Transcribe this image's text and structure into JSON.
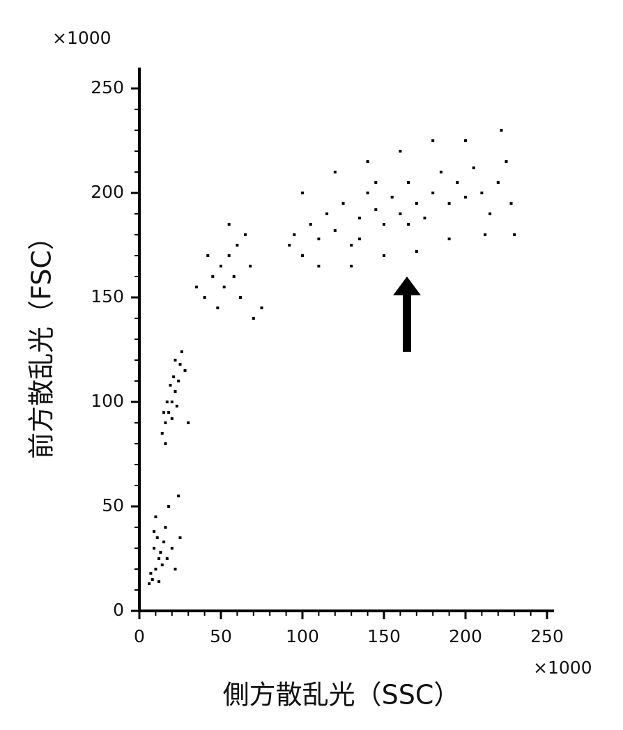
{
  "chart_data": {
    "type": "scatter",
    "x_label": "側方散乱光（SSC）",
    "y_label": "前方散乱光（FSC）",
    "x_unit": "×1000",
    "y_unit": "×1000",
    "xlim": [
      0,
      250
    ],
    "ylim": [
      0,
      250
    ],
    "xticks": [
      0,
      50,
      100,
      150,
      200,
      250
    ],
    "yticks": [
      0,
      50,
      100,
      150,
      200,
      250
    ],
    "xminorticks": [
      10,
      20,
      30,
      40,
      60,
      70,
      80,
      90,
      110,
      120,
      130,
      140,
      160,
      170,
      180,
      190,
      210,
      220,
      230,
      240
    ],
    "yminorticks": [
      10,
      20,
      30,
      40,
      60,
      70,
      80,
      90,
      110,
      120,
      130,
      140,
      160,
      170,
      180,
      190,
      210,
      220,
      230,
      240
    ],
    "color": "#000000",
    "x": [
      8,
      10,
      12,
      9,
      14,
      11,
      7,
      13,
      16,
      18,
      10,
      15,
      20,
      22,
      6,
      12,
      17,
      24,
      9,
      25,
      14,
      16,
      18,
      20,
      22,
      24,
      25,
      26,
      15,
      17,
      19,
      21,
      23,
      16,
      28,
      20,
      22,
      30,
      40,
      45,
      50,
      55,
      60,
      65,
      48,
      52,
      58,
      62,
      70,
      42,
      35,
      68,
      55,
      75,
      92,
      95,
      100,
      105,
      110,
      115,
      120,
      125,
      130,
      135,
      140,
      145,
      150,
      155,
      160,
      165,
      170,
      175,
      180,
      185,
      190,
      195,
      200,
      205,
      210,
      215,
      220,
      225,
      228,
      100,
      110,
      120,
      130,
      140,
      150,
      160,
      170,
      180,
      190,
      200,
      212,
      222,
      230,
      135,
      145,
      165
    ],
    "y": [
      15,
      20,
      25,
      30,
      22,
      35,
      18,
      28,
      40,
      50,
      45,
      33,
      30,
      20,
      13,
      14,
      25,
      55,
      38,
      35,
      85,
      90,
      95,
      100,
      105,
      110,
      118,
      124,
      95,
      100,
      108,
      112,
      98,
      80,
      115,
      92,
      120,
      90,
      150,
      160,
      165,
      170,
      175,
      180,
      145,
      155,
      160,
      150,
      140,
      170,
      155,
      165,
      185,
      145,
      175,
      180,
      170,
      185,
      178,
      190,
      182,
      195,
      175,
      188,
      200,
      192,
      185,
      198,
      190,
      205,
      195,
      188,
      200,
      210,
      195,
      205,
      198,
      212,
      200,
      190,
      205,
      215,
      195,
      200,
      165,
      210,
      165,
      215,
      170,
      220,
      172,
      225,
      178,
      225,
      180,
      230,
      180,
      178,
      205,
      185
    ]
  }
}
